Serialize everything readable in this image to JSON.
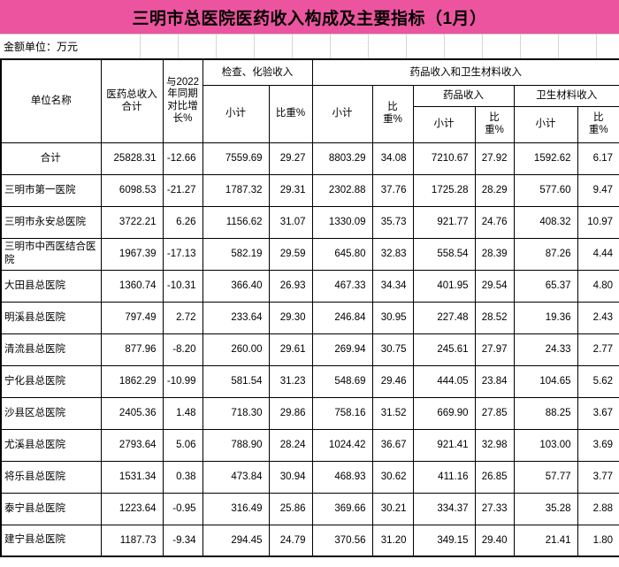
{
  "title": "三明市总医院医药收入构成及主要指标（1月）",
  "unit_note": "金额单位：万元",
  "colors": {
    "title_bg": "#ED549F",
    "table_border": "#000000",
    "gridline_gray": "#D6D6D6"
  },
  "table": {
    "header": {
      "unit_name": "单位名称",
      "total_income": "医药总收入合计",
      "yoy_growth": "与2022年同期对比增长%",
      "exam_group": "检查、化验收入",
      "drug_material_group": "药品收入和卫生材料收入",
      "drug_group": "药品收入",
      "material_group": "卫生材料收入",
      "subtotal": "小计",
      "proportion": "比重%"
    },
    "rows": [
      {
        "name": "合计",
        "values": [
          "25828.31",
          "-12.66",
          "7559.69",
          "29.27",
          "8803.29",
          "34.08",
          "7210.67",
          "27.92",
          "1592.62",
          "6.17"
        ]
      },
      {
        "name": "三明市第一医院",
        "values": [
          "6098.53",
          "-21.27",
          "1787.32",
          "29.31",
          "2302.88",
          "37.76",
          "1725.28",
          "28.29",
          "577.60",
          "9.47"
        ]
      },
      {
        "name": "三明市永安总医院",
        "values": [
          "3722.21",
          "6.26",
          "1156.62",
          "31.07",
          "1330.09",
          "35.73",
          "921.77",
          "24.76",
          "408.32",
          "10.97"
        ]
      },
      {
        "name": "三明市中西医结合医院",
        "values": [
          "1967.39",
          "-17.13",
          "582.19",
          "29.59",
          "645.80",
          "32.83",
          "558.54",
          "28.39",
          "87.26",
          "4.44"
        ]
      },
      {
        "name": "大田县总医院",
        "values": [
          "1360.74",
          "-10.31",
          "366.40",
          "26.93",
          "467.33",
          "34.34",
          "401.95",
          "29.54",
          "65.37",
          "4.80"
        ]
      },
      {
        "name": "明溪县总医院",
        "values": [
          "797.49",
          "2.72",
          "233.64",
          "29.30",
          "246.84",
          "30.95",
          "227.48",
          "28.52",
          "19.36",
          "2.43"
        ]
      },
      {
        "name": "清流县总医院",
        "values": [
          "877.96",
          "-8.20",
          "260.00",
          "29.61",
          "269.94",
          "30.75",
          "245.61",
          "27.97",
          "24.33",
          "2.77"
        ]
      },
      {
        "name": "宁化县总医院",
        "values": [
          "1862.29",
          "-10.99",
          "581.54",
          "31.23",
          "548.69",
          "29.46",
          "444.05",
          "23.84",
          "104.65",
          "5.62"
        ]
      },
      {
        "name": "沙县区总医院",
        "values": [
          "2405.36",
          "1.48",
          "718.30",
          "29.86",
          "758.16",
          "31.52",
          "669.90",
          "27.85",
          "88.25",
          "3.67"
        ]
      },
      {
        "name": "尤溪县总医院",
        "values": [
          "2793.64",
          "5.06",
          "788.90",
          "28.24",
          "1024.42",
          "36.67",
          "921.41",
          "32.98",
          "103.00",
          "3.69"
        ]
      },
      {
        "name": "将乐县总医院",
        "values": [
          "1531.34",
          "0.38",
          "473.84",
          "30.94",
          "468.93",
          "30.62",
          "411.16",
          "26.85",
          "57.77",
          "3.77"
        ]
      },
      {
        "name": "泰宁县总医院",
        "values": [
          "1223.64",
          "-0.95",
          "316.49",
          "25.86",
          "369.66",
          "30.21",
          "334.37",
          "27.33",
          "35.28",
          "2.88"
        ]
      },
      {
        "name": "建宁县总医院",
        "values": [
          "1187.73",
          "-9.34",
          "294.45",
          "24.79",
          "370.56",
          "31.20",
          "349.15",
          "29.40",
          "21.41",
          "1.80"
        ]
      }
    ]
  }
}
